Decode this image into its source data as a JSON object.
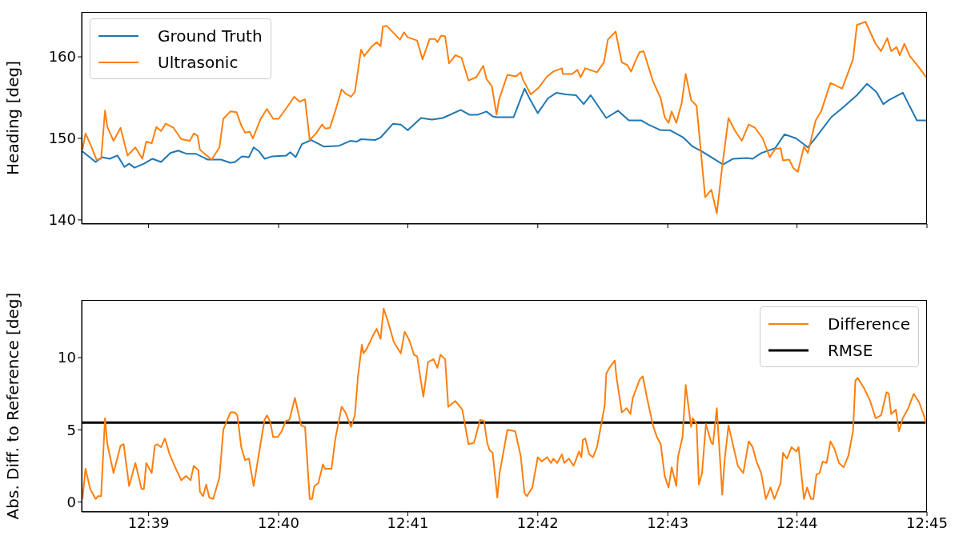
{
  "chart_data": [
    {
      "type": "line",
      "ylabel": "Heading [deg]",
      "xlim": [
        12.6414,
        12.75
      ],
      "xticks": [
        {
          "value": 12.65,
          "label": null
        },
        {
          "value": 12.6667,
          "label": null
        },
        {
          "value": 12.6833,
          "label": null
        },
        {
          "value": 12.7,
          "label": null
        },
        {
          "value": 12.7167,
          "label": null
        },
        {
          "value": 12.7333,
          "label": null
        },
        {
          "value": 12.75,
          "label": null
        }
      ],
      "ylim": [
        139.5,
        165.5
      ],
      "yticks": [
        140,
        150,
        160
      ],
      "tick_labels": "y",
      "legend": "top left",
      "series": [
        {
          "name": "Ground Truth",
          "color": "#1f77b4",
          "x": [
            12.6415,
            12.6432,
            12.644,
            12.645,
            12.646,
            12.6469,
            12.6475,
            12.6482,
            12.6494,
            12.6505,
            12.6516,
            12.6528,
            12.6538,
            12.6549,
            12.6561,
            12.6576,
            12.6593,
            12.6605,
            12.6611,
            12.662,
            12.6629,
            12.6635,
            12.6642,
            12.6649,
            12.6659,
            12.6677,
            12.6682,
            12.6689,
            12.6697,
            12.6709,
            12.6725,
            12.6745,
            12.6759,
            12.6767,
            12.6773,
            12.6791,
            12.6798,
            12.6814,
            12.6824,
            12.6833,
            12.685,
            12.6864,
            12.6878,
            12.6901,
            12.6912,
            12.6923,
            12.6934,
            12.6942,
            12.6947,
            12.6969,
            12.6983,
            12.6991,
            12.7,
            12.7013,
            12.7024,
            12.7036,
            12.7049,
            12.7059,
            12.7068,
            12.7088,
            12.7103,
            12.7117,
            12.7133,
            12.7142,
            12.7158,
            12.717,
            12.7187,
            12.7199,
            12.7211,
            12.7238,
            12.7251,
            12.7269,
            12.7276,
            12.7287,
            12.7305,
            12.7317,
            12.7332,
            12.7347,
            12.7358,
            12.7377,
            12.7391,
            12.741,
            12.7423,
            12.7435,
            12.7444,
            12.7451,
            12.7469,
            12.7487,
            12.7499
          ],
          "values": [
            148.4,
            147.1,
            147.7,
            147.5,
            147.9,
            146.5,
            146.9,
            146.4,
            146.9,
            147.5,
            147.1,
            148.2,
            148.5,
            148.1,
            148.1,
            147.4,
            147.4,
            147.0,
            147.1,
            147.8,
            147.7,
            148.9,
            148.4,
            147.5,
            147.8,
            147.9,
            148.3,
            147.7,
            149.3,
            149.8,
            149.0,
            149.1,
            149.7,
            149.6,
            149.9,
            149.8,
            150.1,
            151.8,
            151.7,
            151.0,
            152.5,
            152.3,
            152.5,
            153.5,
            152.9,
            152.9,
            153.3,
            152.7,
            152.6,
            152.6,
            156.1,
            154.6,
            153.1,
            154.9,
            155.6,
            155.4,
            155.3,
            154.2,
            155.3,
            152.5,
            153.4,
            152.2,
            152.2,
            151.7,
            151.0,
            151.0,
            150.1,
            149.0,
            148.4,
            146.8,
            147.5,
            147.6,
            147.5,
            148.2,
            148.8,
            150.5,
            150.0,
            148.9,
            150.2,
            152.6,
            153.7,
            155.3,
            156.7,
            155.7,
            154.2,
            154.7,
            155.6,
            152.2,
            152.2
          ]
        },
        {
          "name": "Ultrasonic",
          "color": "#ff7f0e",
          "x": [
            12.6415,
            12.6419,
            12.6426,
            12.6433,
            12.6439,
            12.6444,
            12.6447,
            12.6455,
            12.6464,
            12.6473,
            12.6483,
            12.6492,
            12.6497,
            12.6504,
            12.651,
            12.6516,
            12.6522,
            12.6532,
            12.6542,
            12.6553,
            12.6558,
            12.6563,
            12.6566,
            12.6581,
            12.6591,
            12.6596,
            12.6605,
            12.6613,
            12.6619,
            12.6624,
            12.663,
            12.6634,
            12.6644,
            12.6652,
            12.666,
            12.6667,
            12.6677,
            12.6687,
            12.6694,
            12.6701,
            12.6707,
            12.6715,
            12.6723,
            12.6727,
            12.6733,
            12.674,
            12.6748,
            12.6753,
            12.676,
            12.6765,
            12.6773,
            12.6777,
            12.6786,
            12.6793,
            12.6798,
            12.6801,
            12.6806,
            12.6823,
            12.6828,
            12.6833,
            12.6845,
            12.6852,
            12.6861,
            12.6868,
            12.6871,
            12.6876,
            12.6881,
            12.6886,
            12.6894,
            12.6902,
            12.6911,
            12.6921,
            12.693,
            12.6934,
            12.6941,
            12.6947,
            12.695,
            12.6961,
            12.6972,
            12.6978,
            12.6981,
            12.6991,
            12.7001,
            12.7012,
            12.702,
            12.7031,
            12.7032,
            12.7044,
            12.7051,
            12.7055,
            12.7061,
            12.7076,
            12.7085,
            12.709,
            12.71,
            12.7108,
            12.7115,
            12.712,
            12.7125,
            12.7131,
            12.7136,
            12.7148,
            12.7158,
            12.7163,
            12.7168,
            12.7172,
            12.7178,
            12.7185,
            12.719,
            12.7197,
            12.7204,
            12.7215,
            12.7223,
            12.723,
            12.7237,
            12.7245,
            12.7253,
            12.7262,
            12.7271,
            12.7279,
            12.7289,
            12.7298,
            12.7305,
            12.7312,
            12.7315,
            12.7323,
            12.7328,
            12.7334,
            12.7342,
            12.7347,
            12.7357,
            12.7364,
            12.7376,
            12.7391,
            12.7405,
            12.741,
            12.7421,
            12.7434,
            12.7441,
            12.7449,
            12.7454,
            12.7461,
            12.7465,
            12.7471,
            12.7478,
            12.7489,
            12.7499
          ],
          "values": [
            148.6,
            150.6,
            149.1,
            147.4,
            147.5,
            153.4,
            151.4,
            149.7,
            151.3,
            147.9,
            148.9,
            147.5,
            149.6,
            149.4,
            151.4,
            150.9,
            151.8,
            151.3,
            149.9,
            149.7,
            150.6,
            150.3,
            148.6,
            147.4,
            148.9,
            152.4,
            153.3,
            153.2,
            151.6,
            150.7,
            150.8,
            150.0,
            152.4,
            153.6,
            152.4,
            152.4,
            153.7,
            155.1,
            154.5,
            154.8,
            149.8,
            150.6,
            151.7,
            151.2,
            151.3,
            153.4,
            156.0,
            155.5,
            155.1,
            155.7,
            160.9,
            160.1,
            161.2,
            161.8,
            161.3,
            163.7,
            163.8,
            162.1,
            163.0,
            162.4,
            162.0,
            159.7,
            162.2,
            162.2,
            161.8,
            162.6,
            162.5,
            159.2,
            160.2,
            159.9,
            157.1,
            157.5,
            158.9,
            157.3,
            156.4,
            152.9,
            154.7,
            157.8,
            157.6,
            158.1,
            157.2,
            155.4,
            156.2,
            157.6,
            158.2,
            158.6,
            157.9,
            157.9,
            158.4,
            157.5,
            158.6,
            158.1,
            159.3,
            162.1,
            163.1,
            159.3,
            159.0,
            158.2,
            159.4,
            160.6,
            160.7,
            157.0,
            154.9,
            152.6,
            151.9,
            153.3,
            151.9,
            154.4,
            157.9,
            154.7,
            154.0,
            142.8,
            143.7,
            140.8,
            146.6,
            152.5,
            151.0,
            149.7,
            151.7,
            151.3,
            150.0,
            147.7,
            148.7,
            148.8,
            147.3,
            147.4,
            146.4,
            145.9,
            149.0,
            148.2,
            152.2,
            153.3,
            156.8,
            156.1,
            159.7,
            163.9,
            164.3,
            161.6,
            160.7,
            162.3,
            160.7,
            161.2,
            160.2,
            161.6,
            160.1,
            158.8,
            157.5
          ]
        }
      ]
    },
    {
      "type": "line",
      "ylabel": "Abs. Diff. to Reference [deg]",
      "xlim": [
        12.6414,
        12.75
      ],
      "xticks": [
        {
          "value": 12.65,
          "label": "12:39"
        },
        {
          "value": 12.6667,
          "label": "12:40"
        },
        {
          "value": 12.6833,
          "label": "12:41"
        },
        {
          "value": 12.7,
          "label": "12:42"
        },
        {
          "value": 12.7167,
          "label": "12:43"
        },
        {
          "value": 12.7333,
          "label": "12:44"
        },
        {
          "value": 12.75,
          "label": "12:45"
        }
      ],
      "ylim": [
        -0.7,
        14
      ],
      "yticks": [
        0,
        5,
        10
      ],
      "legend": "top right",
      "ref_lines": [
        {
          "axis": "y",
          "value": 5.5,
          "label": "RMSE",
          "color": "#000000"
        }
      ],
      "series": [
        {
          "name": "Difference",
          "color": "#ff7f0e",
          "x": [
            12.6415,
            12.6419,
            12.6425,
            12.6432,
            12.6435,
            12.6439,
            12.6444,
            12.6447,
            12.6455,
            12.6464,
            12.6468,
            12.6475,
            12.6483,
            12.6491,
            12.6494,
            12.6497,
            12.6504,
            12.6508,
            12.6511,
            12.6516,
            12.6521,
            12.6527,
            12.6535,
            12.6542,
            12.6548,
            12.6554,
            12.6558,
            12.6564,
            12.6566,
            12.657,
            12.6574,
            12.6578,
            12.6583,
            12.6591,
            12.6596,
            12.6605,
            12.6611,
            12.6614,
            12.6619,
            12.6624,
            12.6629,
            12.6635,
            12.6644,
            12.6649,
            12.6652,
            12.6656,
            12.666,
            12.6666,
            12.6671,
            12.6676,
            12.6681,
            12.6688,
            12.6696,
            12.6701,
            12.6707,
            12.671,
            12.6713,
            12.6718,
            12.6724,
            12.6727,
            12.6735,
            12.674,
            12.6748,
            12.6753,
            12.676,
            12.6765,
            12.6769,
            12.6774,
            12.6776,
            12.678,
            12.6788,
            12.6793,
            12.6798,
            12.6802,
            12.6807,
            12.6815,
            12.6824,
            12.6829,
            12.6835,
            12.6841,
            12.6845,
            12.6853,
            12.6859,
            12.6866,
            12.6871,
            12.6875,
            12.6881,
            12.6885,
            12.6894,
            12.6903,
            12.6911,
            12.6918,
            12.6926,
            12.6931,
            12.6935,
            12.6938,
            12.6942,
            12.6948,
            12.6951,
            12.6961,
            12.6971,
            12.6978,
            12.6983,
            12.6986,
            12.6993,
            12.7,
            12.7005,
            12.7012,
            12.7017,
            12.702,
            12.7025,
            12.7031,
            12.7034,
            12.704,
            12.7046,
            12.7053,
            12.7056,
            12.7058,
            12.7061,
            12.7066,
            12.7071,
            12.7076,
            12.7082,
            12.7086,
            12.7088,
            12.7092,
            12.7099,
            12.7101,
            12.7108,
            12.7114,
            12.7119,
            12.7122,
            12.7131,
            12.7135,
            12.714,
            12.7148,
            12.7153,
            12.7158,
            12.7163,
            12.7168,
            12.7172,
            12.7178,
            12.718,
            12.7186,
            12.719,
            12.7197,
            12.7199,
            12.7204,
            12.7207,
            12.7211,
            12.7216,
            12.7223,
            12.7225,
            12.723,
            12.7237,
            12.724,
            12.7245,
            12.7257,
            12.7264,
            12.7271,
            12.7276,
            12.7281,
            12.7287,
            12.7293,
            12.7299,
            12.7304,
            12.7312,
            12.7315,
            12.732,
            12.7326,
            12.7332,
            12.7335,
            12.7342,
            12.7346,
            12.7351,
            12.7354,
            12.7358,
            12.7362,
            12.7366,
            12.7371,
            12.7376,
            12.7381,
            12.7387,
            12.7393,
            12.7399,
            12.7405,
            12.7408,
            12.7411,
            12.7419,
            12.7427,
            12.7434,
            12.7441,
            12.7448,
            12.7451,
            12.7454,
            12.746,
            12.7464,
            12.7469,
            12.7476,
            12.7483,
            12.749,
            12.7496,
            12.7499
          ],
          "values": [
            0.2,
            2.3,
            0.9,
            0.2,
            0.4,
            0.4,
            5.8,
            4.0,
            2.0,
            3.9,
            4.0,
            1.1,
            2.7,
            0.9,
            0.9,
            2.7,
            2.0,
            3.9,
            4.0,
            3.8,
            4.4,
            3.3,
            2.3,
            1.5,
            1.8,
            1.5,
            2.5,
            2.2,
            0.7,
            0.4,
            1.2,
            0.3,
            0.2,
            1.7,
            5.0,
            6.2,
            6.2,
            6.0,
            3.8,
            2.9,
            3.0,
            1.1,
            4.1,
            5.7,
            6.0,
            5.6,
            4.5,
            4.5,
            4.9,
            5.6,
            5.7,
            7.2,
            5.3,
            5.2,
            0.2,
            0.2,
            1.1,
            1.3,
            2.6,
            2.3,
            2.3,
            4.4,
            6.6,
            6.2,
            5.2,
            6.0,
            8.7,
            10.9,
            10.3,
            10.6,
            11.5,
            12.0,
            11.3,
            13.4,
            12.6,
            11.1,
            10.3,
            11.8,
            11.2,
            10.2,
            10.1,
            7.3,
            9.7,
            9.9,
            9.3,
            10.2,
            9.9,
            6.6,
            7.0,
            6.4,
            4.0,
            4.1,
            5.7,
            5.6,
            4.1,
            3.6,
            3.4,
            0.3,
            2.0,
            5.0,
            4.9,
            3.2,
            0.6,
            0.4,
            1.0,
            3.1,
            2.8,
            3.1,
            2.7,
            3.0,
            2.7,
            3.3,
            2.7,
            3.0,
            2.5,
            3.5,
            3.1,
            4.3,
            4.4,
            3.3,
            3.1,
            3.8,
            5.5,
            6.7,
            8.9,
            9.3,
            9.8,
            8.7,
            6.2,
            6.5,
            6.1,
            7.2,
            8.5,
            8.7,
            7.3,
            5.3,
            4.5,
            4.0,
            1.8,
            1.0,
            2.4,
            1.1,
            3.1,
            4.5,
            8.1,
            5.2,
            5.8,
            5.4,
            1.2,
            2.0,
            5.4,
            4.1,
            4.0,
            6.5,
            0.5,
            2.9,
            5.3,
            2.5,
            2.0,
            4.2,
            3.8,
            2.8,
            2.0,
            0.2,
            1.0,
            0.2,
            1.3,
            3.4,
            3.0,
            3.8,
            3.5,
            3.8,
            0.2,
            1.0,
            0.2,
            0.2,
            1.9,
            2.0,
            2.8,
            2.7,
            4.2,
            3.7,
            2.7,
            2.4,
            3.2,
            4.9,
            8.4,
            8.6,
            7.9,
            7.0,
            5.8,
            6.0,
            7.6,
            7.5,
            6.1,
            6.4,
            4.9,
            5.8,
            6.5,
            7.5,
            6.9,
            6.0,
            5.4
          ]
        }
      ]
    }
  ]
}
